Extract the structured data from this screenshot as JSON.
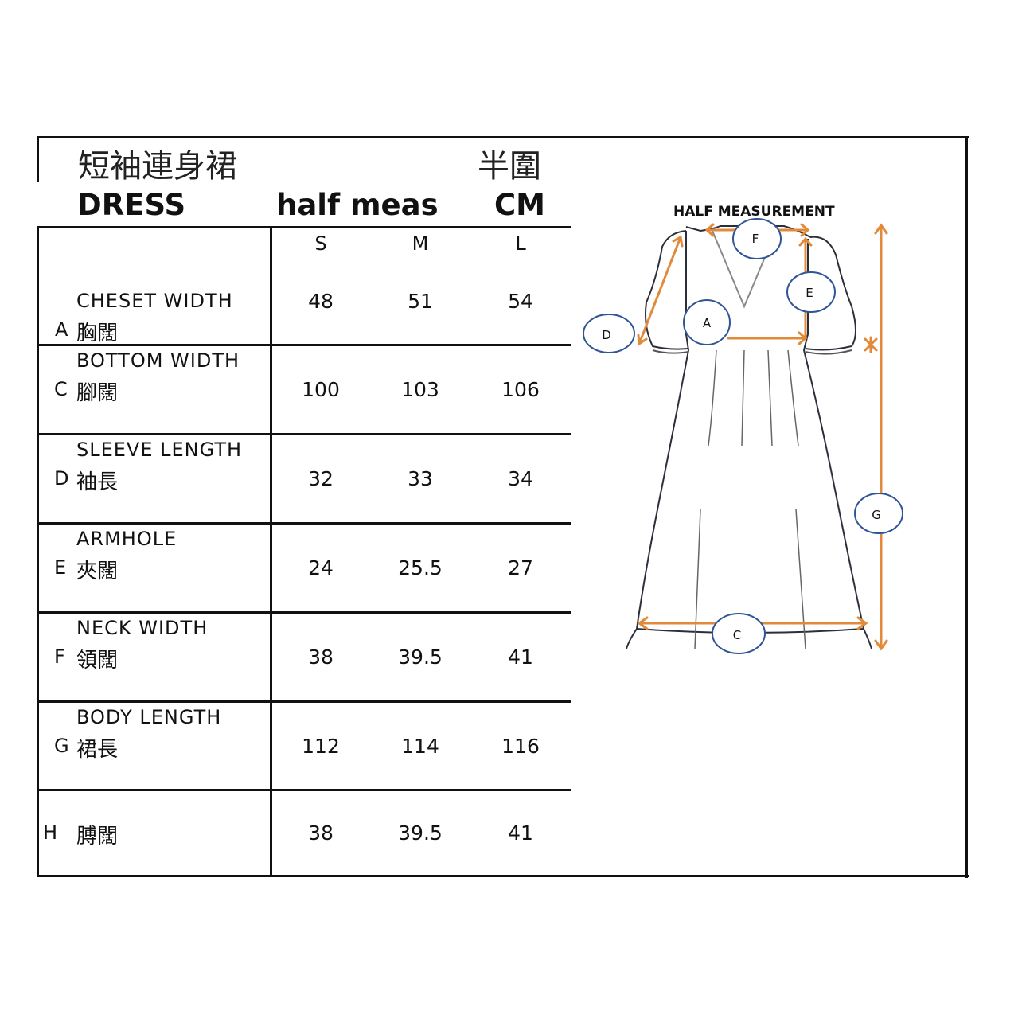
{
  "header": {
    "title_cn": "短袖連身裙",
    "half_cn": "半圍",
    "title_en": "DRESS",
    "half_meas": "half meas",
    "unit": "CM"
  },
  "sizes": [
    "S",
    "M",
    "L"
  ],
  "rows": [
    {
      "letter": "A",
      "label": "CHESET WIDTH",
      "label_cn": "胸闊",
      "values": [
        "48",
        "51",
        "54"
      ]
    },
    {
      "letter": "C",
      "label": "BOTTOM WIDTH",
      "label_cn": "腳闊",
      "values": [
        "100",
        "103",
        "106"
      ]
    },
    {
      "letter": "D",
      "label": "SLEEVE LENGTH",
      "label_cn": "袖長",
      "values": [
        "32",
        "33",
        "34"
      ]
    },
    {
      "letter": "E",
      "label": "ARMHOLE",
      "label_cn": "夾闊",
      "values": [
        "24",
        "25.5",
        "27"
      ]
    },
    {
      "letter": "F",
      "label": "NECK WIDTH",
      "label_cn": "領闊",
      "values": [
        "38",
        "39.5",
        "41"
      ]
    },
    {
      "letter": "G",
      "label": "BODY LENGTH",
      "label_cn": "裙長",
      "values": [
        "112",
        "114",
        "116"
      ]
    },
    {
      "letter": "H",
      "label": "",
      "label_cn": "膊闊",
      "values": [
        "38",
        "39.5",
        "41"
      ]
    }
  ],
  "diagram": {
    "title": "HALF MEASUREMENT",
    "markers": [
      "F",
      "E",
      "A",
      "D",
      "G",
      "C"
    ],
    "arrow_color": "#e08a3a",
    "marker_color": "#2f5597"
  }
}
